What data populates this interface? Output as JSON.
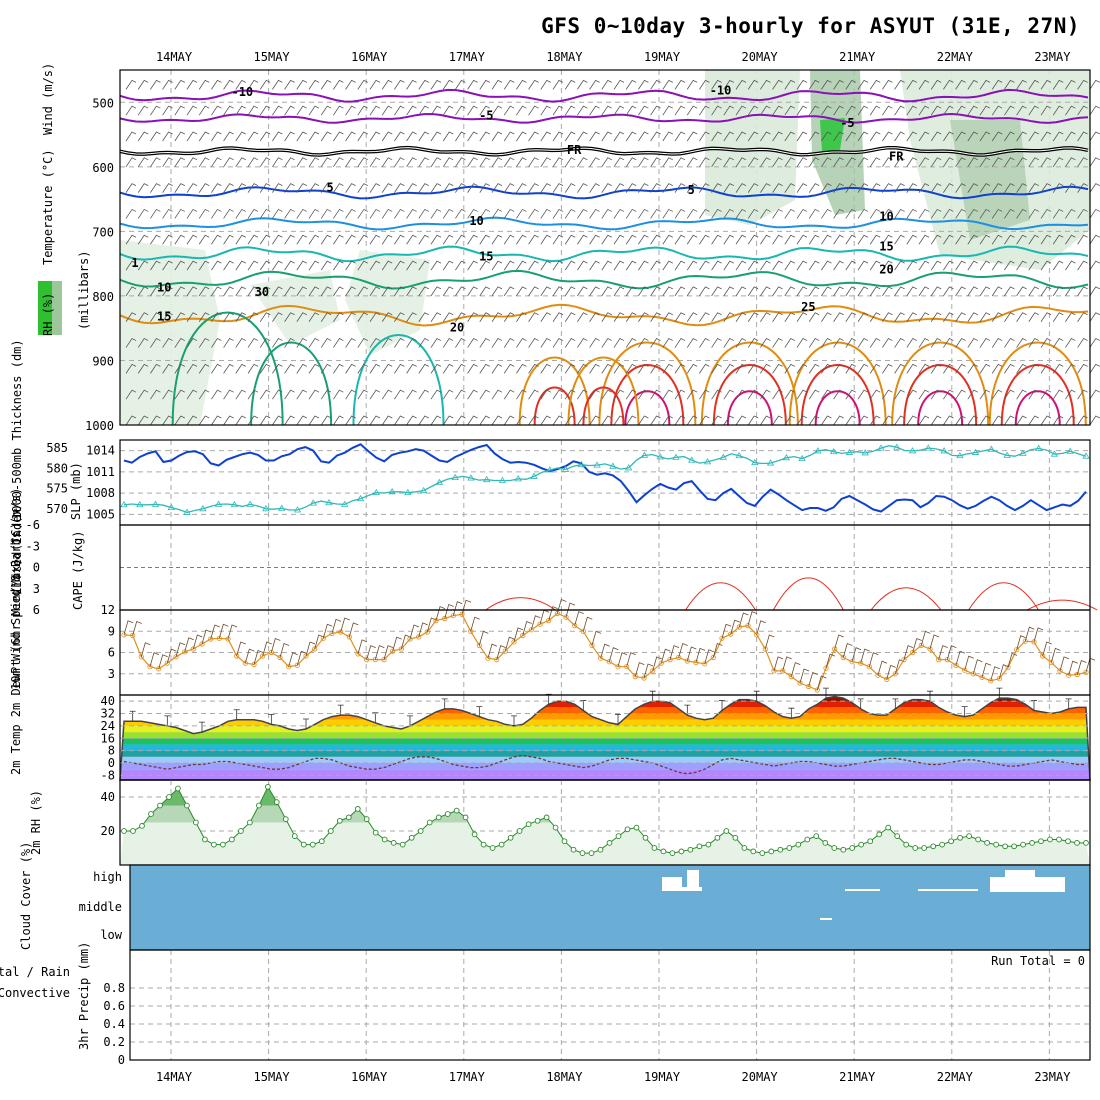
{
  "title": "GFS 0~10day 3-hourly for ASYUT (31E, 27N)",
  "dates": [
    "14MAY",
    "15MAY",
    "16MAY",
    "17MAY",
    "18MAY",
    "19MAY",
    "20MAY",
    "21MAY",
    "22MAY",
    "23MAY"
  ],
  "colors": {
    "purple": "#8a10b8",
    "black": "#000000",
    "blue": "#1040d0",
    "lightblue": "#1e90e0",
    "teal": "#18b8b0",
    "green": "#18a070",
    "orange": "#e08c10",
    "red": "#e03020",
    "magenta": "#d01070",
    "cloud": "#6aaed6",
    "precipGrid": "#aaaaaa"
  },
  "chart_data": [
    {
      "id": "upper",
      "type": "contour",
      "ylabel_parts": [
        "RH (%)",
        "Temperature (°C)",
        "Wind (m/s)"
      ],
      "yaxis_label": "(millibars)",
      "yticks": [
        "500",
        "600",
        "700",
        "800",
        "900",
        "1000"
      ],
      "ylim": [
        450,
        1000
      ],
      "contour_labels": [
        {
          "text": "-10",
          "day": 0.7,
          "p": 490
        },
        {
          "text": "-10",
          "day": 5.6,
          "p": 488
        },
        {
          "text": "-5",
          "day": 3.2,
          "p": 527
        },
        {
          "text": "-5",
          "day": 6.9,
          "p": 538
        },
        {
          "text": "FR",
          "day": 4.1,
          "p": 580
        },
        {
          "text": "FR",
          "day": 7.4,
          "p": 590
        },
        {
          "text": "5",
          "day": 1.6,
          "p": 638
        },
        {
          "text": "5",
          "day": 5.3,
          "p": 642
        },
        {
          "text": "10",
          "day": 3.1,
          "p": 690
        },
        {
          "text": "10",
          "day": 7.3,
          "p": 683
        },
        {
          "text": "15",
          "day": 3.2,
          "p": 745
        },
        {
          "text": "15",
          "day": 7.3,
          "p": 730
        },
        {
          "text": "20",
          "day": 7.3,
          "p": 765
        },
        {
          "text": "25",
          "day": 6.5,
          "p": 823
        },
        {
          "text": "20",
          "day": 2.9,
          "p": 855
        },
        {
          "text": "10",
          "day": -0.1,
          "p": 793
        },
        {
          "text": "15",
          "day": -0.1,
          "p": 838
        },
        {
          "text": "1",
          "day": -0.4,
          "p": 755
        },
        {
          "text": "30",
          "day": 0.9,
          "p": 800
        }
      ]
    },
    {
      "id": "pressure",
      "type": "line",
      "ylabel_left": "1000-500mb Thickness (dm)",
      "ylabel_right": "SLP (mb)",
      "yticks_left": [
        "585",
        "580",
        "575",
        "570"
      ],
      "yticks_right": [
        "1014",
        "1011",
        "1008",
        "1005"
      ],
      "ylim_slp": [
        1003.5,
        1015.5
      ],
      "ylim_thk": [
        566,
        587
      ],
      "slp": [
        1012.6,
        1012.3,
        1013.1,
        1013.6,
        1013.9,
        1012.4,
        1012.6,
        1013.3,
        1013.8,
        1013.9,
        1013.5,
        1012.2,
        1011.9,
        1012.7,
        1013.1,
        1013.5,
        1013.7,
        1013.4,
        1012.6,
        1012.6,
        1013.2,
        1013.5,
        1014.2,
        1014.5,
        1014.0,
        1012.5,
        1012.3,
        1013.3,
        1013.7,
        1014.4,
        1014.9,
        1013.9,
        1013.0,
        1012.5,
        1013.4,
        1013.7,
        1013.9,
        1014.2,
        1014.0,
        1013.3,
        1012.6,
        1012.4,
        1013.1,
        1013.6,
        1014.1,
        1014.5,
        1014.8,
        1013.6,
        1012.8,
        1012.3,
        1012.4,
        1012.3,
        1012.0,
        1011.5,
        1011.1,
        1011.4,
        1011.8,
        1012.5,
        1012.2,
        1011.0,
        1010.6,
        1010.8,
        1010.5,
        1009.7,
        1008.3,
        1006.7,
        1007.7,
        1008.6,
        1009.3,
        1008.8,
        1008.5,
        1009.4,
        1009.7,
        1008.4,
        1007.2,
        1007.0,
        1008.0,
        1008.6,
        1007.6,
        1006.6,
        1006.2,
        1007.5,
        1008.5,
        1007.8,
        1007.0,
        1006.3,
        1005.6,
        1005.9,
        1005.9,
        1005.5,
        1006.0,
        1007.2,
        1007.6,
        1007.0,
        1006.4,
        1005.7,
        1005.4,
        1006.2,
        1007.0,
        1007.1,
        1007.0,
        1006.0,
        1006.6,
        1007.6,
        1007.5,
        1007.0,
        1006.3,
        1005.8,
        1006.2,
        1006.9,
        1007.5,
        1007.0,
        1006.2,
        1005.6,
        1006.2,
        1007.0,
        1006.3,
        1005.6,
        1006.0,
        1006.4,
        1006.2,
        1006.9,
        1008.2
      ],
      "thickness": [
        571.0,
        571.2,
        571.0,
        571.0,
        571.1,
        570.9,
        570.3,
        569.8,
        569.1,
        569.6,
        570.0,
        570.6,
        571.1,
        571.2,
        571.0,
        570.6,
        571.1,
        570.7,
        570.0,
        569.9,
        570.1,
        569.7,
        569.7,
        570.4,
        571.4,
        571.9,
        571.5,
        571.2,
        571.1,
        572.0,
        572.5,
        573.3,
        574.0,
        573.9,
        574.2,
        574.2,
        574.0,
        574.2,
        574.5,
        575.5,
        576.5,
        577.3,
        577.7,
        578.0,
        577.6,
        577.1,
        577.2,
        577.0,
        577.0,
        577.0,
        577.4,
        577.3,
        578.0,
        579.0,
        579.6,
        580.1,
        579.7,
        580.5,
        580.9,
        580.7,
        580.8,
        581.1,
        580.5,
        579.8,
        580.1,
        582.0,
        583.2,
        583.4,
        582.8,
        582.3,
        582.7,
        582.9,
        582.0,
        581.3,
        581.6,
        582.1,
        582.7,
        583.6,
        583.1,
        582.5,
        581.4,
        581.2,
        581.3,
        581.9,
        582.6,
        582.9,
        582.4,
        583.2,
        584.3,
        584.6,
        584.1,
        583.7,
        583.9,
        584.1,
        583.8,
        584.2,
        585.0,
        585.6,
        585.2,
        584.4,
        584.3,
        584.5,
        585.0,
        584.8,
        584.3,
        583.2,
        583.1,
        583.6,
        583.9,
        584.3,
        584.7,
        583.8,
        583.2,
        583.0,
        583.7,
        584.6,
        584.9,
        584.5,
        583.5,
        583.7,
        584.2,
        583.6,
        583.0
      ]
    },
    {
      "id": "cape",
      "type": "line",
      "ylabel_left": "Lifted Index",
      "ylabel_right": "CAPE (J/kg)",
      "yticks": [
        "-6",
        "-3",
        "0",
        "3",
        "6"
      ],
      "ylim": [
        -6,
        6
      ],
      "lifted_index": [
        6.2,
        6.2,
        6.2,
        6.2,
        6.2,
        6.2,
        6.2,
        6.2,
        6.2,
        6.2,
        6.2,
        6.2,
        6.2,
        6.2,
        6.2,
        6.2,
        6.2,
        6.2,
        6.2,
        6.2,
        6.2,
        6.2,
        6.2,
        6.2,
        6.2,
        6.2,
        6.2,
        6.2,
        6.2,
        6.2,
        6.2,
        6.2,
        6.2,
        6.2,
        6.2,
        6.2,
        6.2,
        6.2,
        6.2,
        6.2,
        6.2,
        6.2,
        6.2,
        6.2,
        6.2,
        6.2,
        6.2,
        6.2,
        6.2,
        6.2,
        6.2,
        6.2,
        6.2,
        6.2,
        6.2,
        6.2,
        6.2,
        6.2,
        6.2,
        6.2,
        6.2,
        6.2,
        6.2,
        6.2,
        6.2,
        6.2,
        6.2,
        6.2,
        6.2,
        6.2,
        6.2,
        6.2,
        6.2,
        6.2,
        6.2,
        6.2,
        6.2,
        6.2,
        6.2,
        6.2,
        6.2,
        6.2,
        6.2,
        6.2,
        6.2,
        6.2,
        6.2,
        6.2,
        6.2,
        6.2,
        6.2,
        6.2,
        6.2,
        6.2,
        6.2,
        6.2,
        6.2,
        6.2,
        6.2,
        6.2,
        6.2,
        6.2,
        6.2,
        6.2,
        6.2,
        6.2,
        6.2,
        6.2,
        6.2,
        6.2,
        6.2,
        6.2,
        6.2,
        6.2,
        6.2,
        6.2,
        6.2,
        6.2,
        6.2,
        6.2,
        6.2,
        6.2,
        6.2
      ],
      "zero_line": 0
    },
    {
      "id": "wind10m",
      "type": "line",
      "ylabel": "10m Wind Speed & Barbs (m/s)",
      "yticks": [
        "12",
        "9",
        "6",
        "3"
      ],
      "ylim": [
        0,
        12
      ],
      "speed": [
        8.5,
        8.4,
        5.4,
        4.0,
        3.7,
        4.5,
        5.4,
        6.1,
        6.5,
        7.2,
        7.9,
        8.0,
        7.9,
        5.5,
        4.5,
        4.3,
        5.5,
        6.0,
        5.3,
        4.0,
        4.2,
        5.5,
        6.5,
        8.0,
        8.7,
        8.9,
        8.2,
        5.8,
        5.0,
        5.0,
        5.0,
        6.2,
        6.5,
        7.9,
        8.2,
        8.9,
        10.5,
        10.8,
        11.2,
        11.4,
        9.0,
        7.0,
        5.2,
        5.0,
        6.2,
        7.5,
        8.4,
        9.2,
        10.0,
        10.5,
        11.5,
        11.0,
        9.8,
        9.0,
        7.0,
        5.2,
        4.7,
        4.0,
        4.0,
        2.6,
        2.4,
        3.4,
        4.5,
        5.0,
        5.3,
        4.8,
        4.6,
        4.4,
        5.3,
        8.0,
        8.6,
        9.6,
        9.8,
        8.5,
        6.5,
        3.4,
        3.4,
        2.6,
        1.7,
        1.2,
        0.7,
        3.8,
        6.5,
        5.3,
        4.7,
        4.5,
        4.0,
        2.8,
        2.2,
        3.0,
        5.0,
        6.0,
        7.0,
        6.5,
        5.0,
        5.0,
        4.2,
        3.5,
        3.0,
        2.5,
        2.0,
        2.3,
        3.9,
        6.4,
        7.6,
        7.5,
        5.5,
        4.6,
        3.4,
        2.8,
        2.9,
        3.2
      ]
    },
    {
      "id": "temp2m",
      "type": "area",
      "ylabel": "2m Temp 2m DewPt (6hr Min/Max) (°C)",
      "yticks": [
        "40",
        "32",
        "24",
        "16",
        "8",
        "0",
        "-8"
      ],
      "ylim": [
        -11,
        44
      ],
      "temp": [
        27,
        27,
        27,
        26,
        25,
        24,
        23,
        21,
        19,
        20,
        22,
        24,
        27,
        28,
        28,
        28,
        27,
        25,
        24,
        22,
        21,
        22,
        25,
        28,
        30,
        31,
        31,
        30,
        28,
        26,
        24,
        23,
        22,
        24,
        27,
        30,
        33,
        35,
        35,
        34,
        32,
        30,
        28,
        27,
        25,
        24,
        25,
        29,
        34,
        38,
        40,
        40,
        38,
        34,
        30,
        28,
        26,
        25,
        30,
        35,
        38,
        40,
        40,
        39,
        35,
        31,
        29,
        28,
        29,
        34,
        38,
        41,
        41,
        40,
        37,
        33,
        30,
        29,
        30,
        35,
        38,
        42,
        43,
        42,
        39,
        35,
        32,
        31,
        31,
        35,
        39,
        41,
        41,
        40,
        36,
        33,
        31,
        30,
        31,
        35,
        39,
        42,
        42,
        41,
        38,
        34,
        33,
        32,
        33,
        35,
        36,
        36
      ],
      "dewpt": [
        1,
        0,
        -1,
        -2,
        -3,
        -4,
        -3,
        -2,
        -1,
        -1,
        0,
        1,
        1,
        0,
        -1,
        -2,
        -3,
        -4,
        -4,
        -3,
        -1,
        1,
        3,
        3,
        2,
        0,
        -2,
        -3,
        -4,
        -4,
        -3,
        -1,
        1,
        3,
        4,
        4,
        3,
        1,
        -1,
        -2,
        -3,
        -3,
        -2,
        0,
        2,
        4,
        5,
        4,
        3,
        1,
        0,
        -1,
        -2,
        -3,
        -2,
        0,
        2,
        3,
        3,
        2,
        1,
        0,
        -2,
        -4,
        -6,
        -7,
        -6,
        -4,
        -1,
        2,
        3,
        2,
        1,
        0,
        -1,
        -2,
        -1,
        0,
        1,
        1,
        0,
        -1,
        -2,
        -2,
        -1,
        0,
        1,
        2,
        3,
        3,
        2,
        1,
        0,
        -1,
        -1,
        0,
        1,
        2,
        2,
        1,
        0,
        -1,
        -2,
        -2,
        -1,
        0,
        1,
        2,
        1,
        0,
        -1,
        -1
      ]
    },
    {
      "id": "rh2m",
      "type": "area",
      "ylabel": "2m RH (%)",
      "yticks": [
        "40",
        "20"
      ],
      "ylim": [
        0,
        50
      ],
      "rh": [
        20,
        20,
        23,
        30,
        35,
        40,
        45,
        35,
        25,
        15,
        12,
        12,
        15,
        20,
        25,
        35,
        46,
        37,
        27,
        17,
        12,
        12,
        14,
        20,
        26,
        28,
        33,
        27,
        19,
        15,
        13,
        12,
        16,
        20,
        25,
        28,
        30,
        32,
        28,
        18,
        12,
        10,
        12,
        16,
        20,
        24,
        26,
        28,
        22,
        14,
        9,
        7,
        7,
        9,
        13,
        17,
        21,
        22,
        16,
        10,
        8,
        7,
        8,
        9,
        11,
        12,
        16,
        20,
        16,
        10,
        8,
        7,
        8,
        9,
        10,
        12,
        15,
        17,
        13,
        10,
        9,
        10,
        12,
        14,
        18,
        22,
        17,
        12,
        10,
        10,
        11,
        12,
        14,
        16,
        17,
        15,
        13,
        12,
        11,
        11,
        12,
        13,
        14,
        15,
        15,
        14,
        13,
        13
      ]
    },
    {
      "id": "cloud",
      "type": "area",
      "ylabel": "Cloud Cover (%)",
      "levels": [
        "high",
        "middle",
        "low"
      ]
    },
    {
      "id": "precip",
      "type": "bar",
      "ylabel_left": "Total / Rain",
      "ylabel_left2": "Convective",
      "ylabel": "3hr Precip (mm)",
      "yticks": [
        "0.8",
        "0.6",
        "0.4",
        "0.2",
        "0"
      ],
      "ylim": [
        0,
        1
      ],
      "run_total": "Run Total = 0",
      "values": []
    }
  ]
}
